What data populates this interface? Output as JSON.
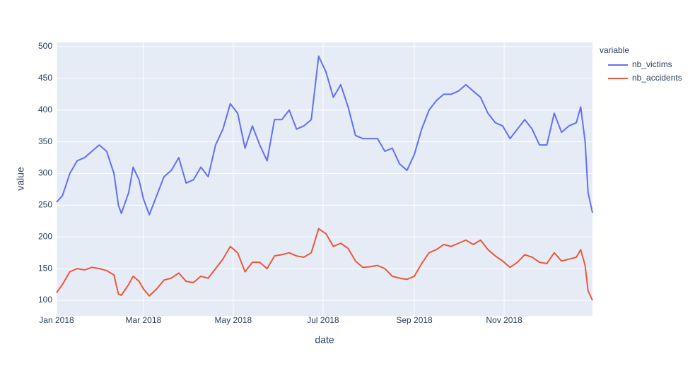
{
  "chart_data": {
    "type": "line",
    "xlabel": "date",
    "ylabel": "value",
    "legend_title": "variable",
    "legend": "right",
    "grid": true,
    "x": [
      "2018-01-01",
      "2018-01-05",
      "2018-01-10",
      "2018-01-15",
      "2018-01-20",
      "2018-01-25",
      "2018-01-30",
      "2018-02-04",
      "2018-02-09",
      "2018-02-12",
      "2018-02-14",
      "2018-02-19",
      "2018-02-22",
      "2018-02-26",
      "2018-03-01",
      "2018-03-05",
      "2018-03-10",
      "2018-03-15",
      "2018-03-20",
      "2018-03-25",
      "2018-03-30",
      "2018-04-04",
      "2018-04-09",
      "2018-04-14",
      "2018-04-19",
      "2018-04-24",
      "2018-04-29",
      "2018-05-04",
      "2018-05-09",
      "2018-05-14",
      "2018-05-19",
      "2018-05-24",
      "2018-05-29",
      "2018-06-03",
      "2018-06-08",
      "2018-06-13",
      "2018-06-18",
      "2018-06-23",
      "2018-06-28",
      "2018-07-03",
      "2018-07-08",
      "2018-07-13",
      "2018-07-18",
      "2018-07-23",
      "2018-07-28",
      "2018-08-02",
      "2018-08-07",
      "2018-08-12",
      "2018-08-17",
      "2018-08-22",
      "2018-08-27",
      "2018-09-01",
      "2018-09-06",
      "2018-09-11",
      "2018-09-16",
      "2018-09-21",
      "2018-09-26",
      "2018-10-01",
      "2018-10-06",
      "2018-10-11",
      "2018-10-16",
      "2018-10-21",
      "2018-10-26",
      "2018-10-31",
      "2018-11-05",
      "2018-11-10",
      "2018-11-15",
      "2018-11-20",
      "2018-11-25",
      "2018-11-30",
      "2018-12-05",
      "2018-12-10",
      "2018-12-15",
      "2018-12-20",
      "2018-12-23",
      "2018-12-26",
      "2018-12-28",
      "2018-12-31"
    ],
    "series": [
      {
        "name": "nb_victims",
        "color": "#636efa",
        "values": [
          255,
          265,
          300,
          320,
          325,
          335,
          345,
          335,
          300,
          250,
          237,
          270,
          310,
          290,
          260,
          235,
          265,
          295,
          305,
          325,
          285,
          290,
          310,
          295,
          345,
          370,
          410,
          395,
          340,
          375,
          345,
          320,
          385,
          385,
          400,
          370,
          375,
          385,
          485,
          460,
          420,
          440,
          405,
          360,
          355,
          355,
          355,
          335,
          340,
          315,
          305,
          330,
          370,
          400,
          415,
          425,
          425,
          430,
          440,
          430,
          420,
          395,
          380,
          375,
          355,
          370,
          385,
          370,
          345,
          345,
          395,
          365,
          375,
          380,
          405,
          350,
          270,
          238
        ]
      },
      {
        "name": "nb_accidents",
        "color": "#EF553B",
        "values": [
          112,
          125,
          145,
          150,
          148,
          152,
          150,
          147,
          140,
          110,
          108,
          125,
          138,
          130,
          118,
          107,
          118,
          132,
          135,
          143,
          130,
          128,
          138,
          135,
          150,
          165,
          185,
          175,
          145,
          160,
          160,
          150,
          170,
          172,
          175,
          170,
          168,
          175,
          213,
          205,
          185,
          190,
          182,
          162,
          152,
          153,
          155,
          150,
          138,
          135,
          133,
          138,
          158,
          175,
          180,
          188,
          185,
          190,
          195,
          188,
          195,
          180,
          170,
          162,
          152,
          160,
          172,
          168,
          160,
          158,
          175,
          162,
          165,
          168,
          180,
          155,
          115,
          100
        ]
      }
    ],
    "xlim": [
      "2018-01-01",
      "2018-12-31"
    ],
    "xticks": [
      {
        "value": "2018-01-01",
        "label": "Jan 2018"
      },
      {
        "value": "2018-03-01",
        "label": "Mar 2018"
      },
      {
        "value": "2018-05-01",
        "label": "May 2018"
      },
      {
        "value": "2018-07-01",
        "label": "Jul 2018"
      },
      {
        "value": "2018-09-01",
        "label": "Sep 2018"
      },
      {
        "value": "2018-11-01",
        "label": "Nov 2018"
      }
    ],
    "ylim": [
      75.5,
      506.7
    ],
    "yticks": [
      100,
      150,
      200,
      250,
      300,
      350,
      400,
      450,
      500
    ]
  }
}
